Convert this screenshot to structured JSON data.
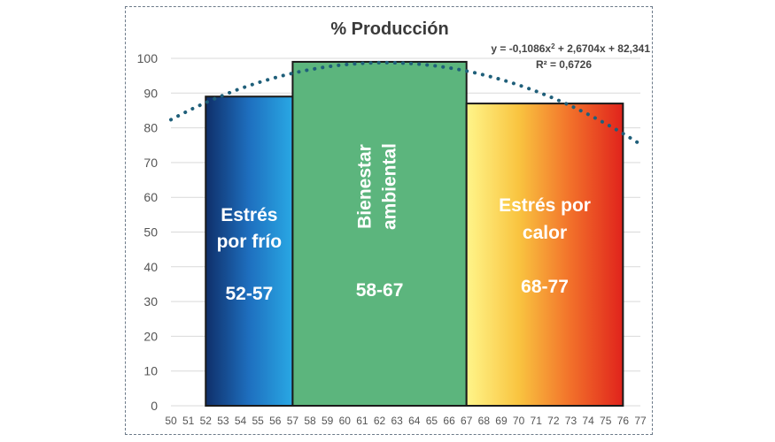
{
  "chart_data": {
    "type": "bar",
    "title": "% Producción",
    "xlabel": "",
    "ylabel": "",
    "ylim": [
      0,
      100
    ],
    "yticks": [
      0,
      10,
      20,
      30,
      40,
      50,
      60,
      70,
      80,
      90,
      100
    ],
    "xticks": [
      50,
      51,
      52,
      53,
      54,
      55,
      56,
      57,
      58,
      59,
      60,
      61,
      62,
      63,
      64,
      65,
      66,
      67,
      68,
      69,
      70,
      71,
      72,
      73,
      74,
      75,
      76,
      77
    ],
    "grid": true,
    "bars": [
      {
        "label": "Estrés por frío",
        "range_label": "52-57",
        "x_start": 52,
        "x_end": 57,
        "value": 89,
        "colors": [
          "#0f2f6a",
          "#1e6fbf",
          "#29a8e4"
        ]
      },
      {
        "label": "Bienestar ambiental",
        "range_label": "58-67",
        "x_start": 57,
        "x_end": 67,
        "value": 99,
        "colors": [
          "#5cb57d"
        ]
      },
      {
        "label": "Estrés por calor",
        "range_label": "68-77",
        "x_start": 67,
        "x_end": 76,
        "value": 87,
        "colors": [
          "#fff58a",
          "#f9c440",
          "#f2702a",
          "#e0231c"
        ]
      }
    ],
    "trendline": {
      "type": "polynomial",
      "equation": "y = -0,1086x² + 2,6704x + 82,341",
      "r_squared": "R² = 0,6726",
      "a": -0.1086,
      "b": 2.6704,
      "c": 82.341,
      "color": "#1f5f7a"
    }
  }
}
